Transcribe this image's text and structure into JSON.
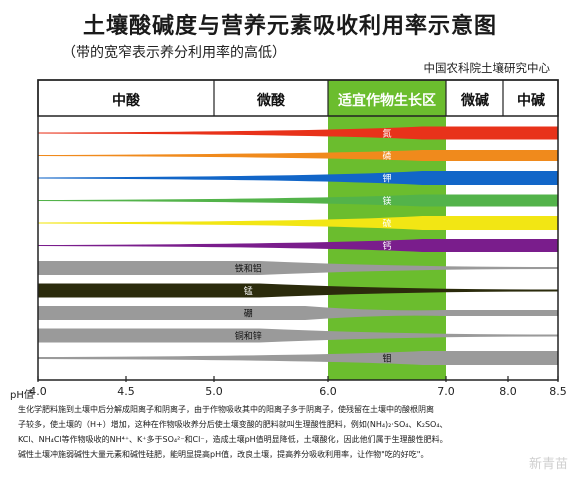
{
  "title": "土壤酸碱度与营养元素吸收利用率示意图",
  "subtitle": "（带的宽窄表示养分利用率的高低）",
  "source": "中国农科院土壤研究中心",
  "zones": [
    {
      "label": "中酸",
      "from": 4.0,
      "to": 5.0
    },
    {
      "label": "微酸",
      "from": 5.0,
      "to": 6.0
    },
    {
      "label": "适宜作物生长区",
      "from": 6.0,
      "to": 7.0
    },
    {
      "label": "微碱",
      "from": 7.0,
      "to": 7.5
    },
    {
      "label": "中碱",
      "from": 8.0,
      "to": 8.5
    }
  ],
  "ph_axis": {
    "title": "pH值",
    "ticks": [
      "4.0",
      "4.5",
      "5.0",
      "6.0",
      "7.0",
      "8.0",
      "8.5"
    ]
  },
  "colors": {
    "optimal_zone": "#6bbd2e",
    "nitrogen": "#e8321a",
    "phosphorus": "#f08a1c",
    "potassium": "#1266c8",
    "sulfur_magnesium": "#53b34a",
    "sulfur": "#f2e614",
    "calcium": "#7a1d8c",
    "gray_band": "#9a9a9a",
    "manganese": "#2b2b0c"
  },
  "nutrients": [
    {
      "label": "氮",
      "color": "#e8321a",
      "width_start": 1,
      "width_end": 13,
      "label_ph": 6.5,
      "shape": "grow"
    },
    {
      "label": "磷",
      "color": "#f08a1c",
      "width_start": 1,
      "width_end": 11,
      "label_ph": 6.5,
      "shape": "grow"
    },
    {
      "label": "钾",
      "color": "#1266c8",
      "width_start": 1,
      "width_end": 14,
      "label_ph": 6.5,
      "shape": "grow"
    },
    {
      "label": "镁",
      "color": "#53b34a",
      "width_start": 1,
      "width_end": 12,
      "label_ph": 6.5,
      "shape": "grow"
    },
    {
      "label": "硫",
      "color": "#f2e614",
      "width_start": 1,
      "width_end": 14,
      "label_ph": 6.5,
      "shape": "grow"
    },
    {
      "label": "钙",
      "color": "#7a1d8c",
      "width_start": 1,
      "width_end": 13,
      "label_ph": 6.5,
      "shape": "grow"
    },
    {
      "label": "铁和铝",
      "color": "#9a9a9a",
      "width_start": 14,
      "width_end": 2,
      "label_ph": 5.3,
      "shape": "shrink"
    },
    {
      "label": "锰",
      "color": "#2b2b0c",
      "width_start": 14,
      "width_end": 2,
      "label_ph": 5.3,
      "shape": "shrink"
    },
    {
      "label": "硼",
      "color": "#9a9a9a",
      "width_start": 14,
      "width_end": 6,
      "label_ph": 5.3,
      "shape": "dip"
    },
    {
      "label": "铜和锌",
      "color": "#9a9a9a",
      "width_start": 14,
      "width_end": 2,
      "label_ph": 5.3,
      "shape": "shrink"
    },
    {
      "label": "钼",
      "color": "#9a9a9a",
      "width_start": 2,
      "width_end": 14,
      "label_ph": 6.5,
      "shape": "grow"
    }
  ],
  "note_lines": [
    "生化学肥料施到土壤中后分解成阳离子和阴离子，由于作物吸收其中的阳离子多于阴离子，使残留在土壤中的酸根阴离",
    "子较多，使土壤的（H+）增加，这种在作物吸收养分后使土壤变酸的肥料就叫生理酸性肥料，例如(NH₄)₂·SO₄、K₂SO₄、",
    "KCl、NH₄Cl等作物吸收的NH⁴⁺、K⁺多于SO₄²⁻和Cl⁻，造成土壤pH值明显降低，土壤酸化，因此他们属于生理酸性肥料。",
    "碱性土壤冲施弱碱性大量元素和碱性硅肥，能明显提高pH值，改良土壤，提高养分吸收利用率，让作物\"吃的好吃\"。"
  ],
  "watermark": "新青苗"
}
